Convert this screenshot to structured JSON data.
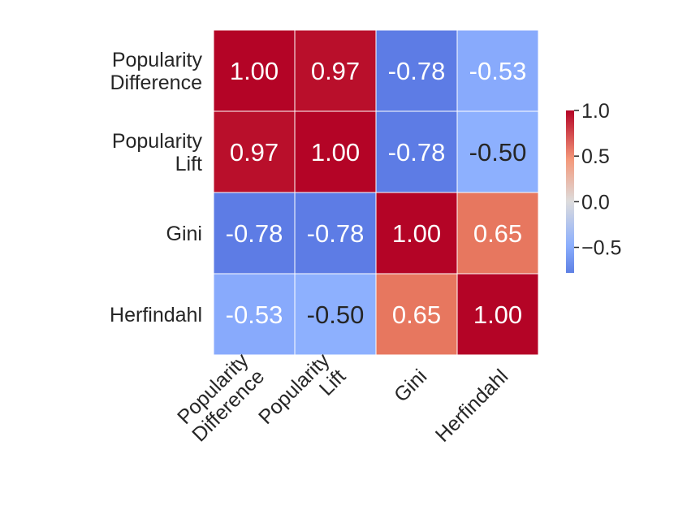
{
  "chart_data": {
    "type": "heatmap",
    "title": "",
    "xlabel": "",
    "ylabel": "",
    "rows": [
      [
        "Popularity",
        "Difference"
      ],
      [
        "Popularity",
        "Lift"
      ],
      [
        "Gini"
      ],
      [
        "Herfindahl"
      ]
    ],
    "cols": [
      [
        "Popularity",
        "Difference"
      ],
      [
        "Popularity",
        "Lift"
      ],
      [
        "Gini"
      ],
      [
        "Herfindahl"
      ]
    ],
    "values": [
      [
        1.0,
        0.97,
        -0.78,
        -0.53
      ],
      [
        0.97,
        1.0,
        -0.78,
        -0.5
      ],
      [
        -0.78,
        -0.78,
        1.0,
        0.65
      ],
      [
        -0.53,
        -0.5,
        0.65,
        1.0
      ]
    ],
    "annotations": [
      [
        "1.00",
        "0.97",
        "-0.78",
        "-0.53"
      ],
      [
        "0.97",
        "1.00",
        "-0.78",
        "-0.50"
      ],
      [
        "-0.78",
        "-0.78",
        "1.00",
        "0.65"
      ],
      [
        "-0.53",
        "-0.50",
        "0.65",
        "1.00"
      ]
    ],
    "colormap": "coolwarm",
    "colorbar": {
      "range": [
        -0.78,
        1.0
      ],
      "ticks": [
        1.0,
        0.5,
        0.0,
        -0.5
      ],
      "tick_labels": [
        "1.0",
        "0.5",
        "0.0",
        "−0.5"
      ]
    },
    "grid": false,
    "legend": "right"
  }
}
